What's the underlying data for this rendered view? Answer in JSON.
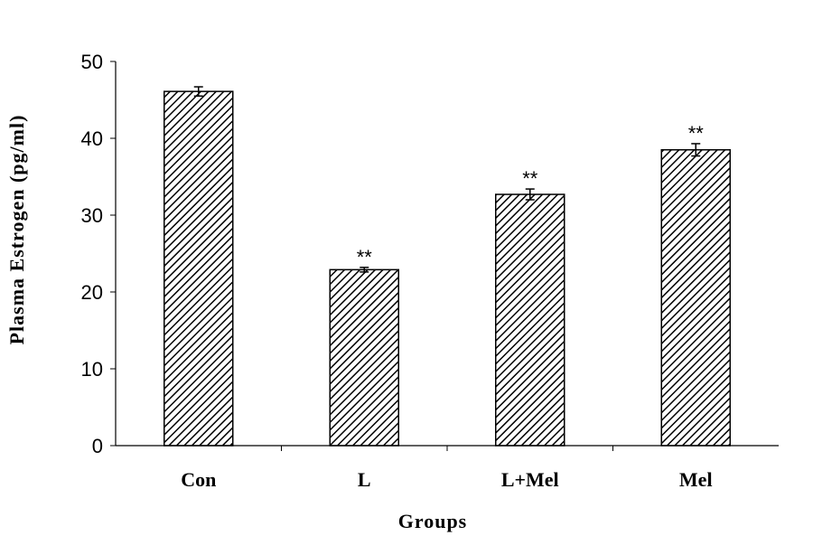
{
  "chart_data": {
    "type": "bar",
    "categories": [
      "Con",
      "L",
      "L+Mel",
      "Mel"
    ],
    "values": [
      46.1,
      22.9,
      32.7,
      38.5
    ],
    "errors": [
      0.6,
      0.3,
      0.7,
      0.8
    ],
    "annotations": [
      "",
      "**",
      "**",
      "**"
    ],
    "xlabel": "Groups",
    "ylabel": "Plasma Estrogen (pg/ml)",
    "ylim": [
      0,
      50
    ],
    "yticks": [
      0,
      10,
      20,
      30,
      40,
      50
    ],
    "grid": false,
    "bar_fill": "diagonal hatch",
    "colors": {
      "bar_stroke": "#000000",
      "hatch": "#000000",
      "background": "#ffffff"
    }
  }
}
